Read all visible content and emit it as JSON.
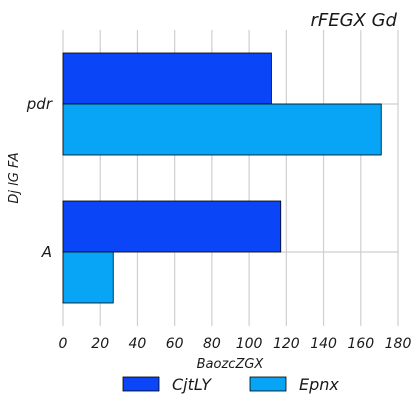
{
  "chart_data": {
    "type": "bar",
    "orientation": "horizontal",
    "title": "rFEGX Gd",
    "xlabel": "BaozcZGX",
    "ylabel": "Dj lG FA",
    "categories": [
      "pdr",
      "A"
    ],
    "series": [
      {
        "name": "CjtLY",
        "values": [
          112,
          117
        ],
        "color": "#0a46f8"
      },
      {
        "name": "Epnx",
        "values": [
          171,
          27
        ],
        "color": "#08a4f6"
      }
    ],
    "xlim": [
      0,
      180
    ],
    "xticks": [
      "0",
      "20",
      "40",
      "60",
      "80",
      "100",
      "120",
      "140",
      "160",
      "180"
    ],
    "grid": true,
    "legend_position": "bottom"
  }
}
